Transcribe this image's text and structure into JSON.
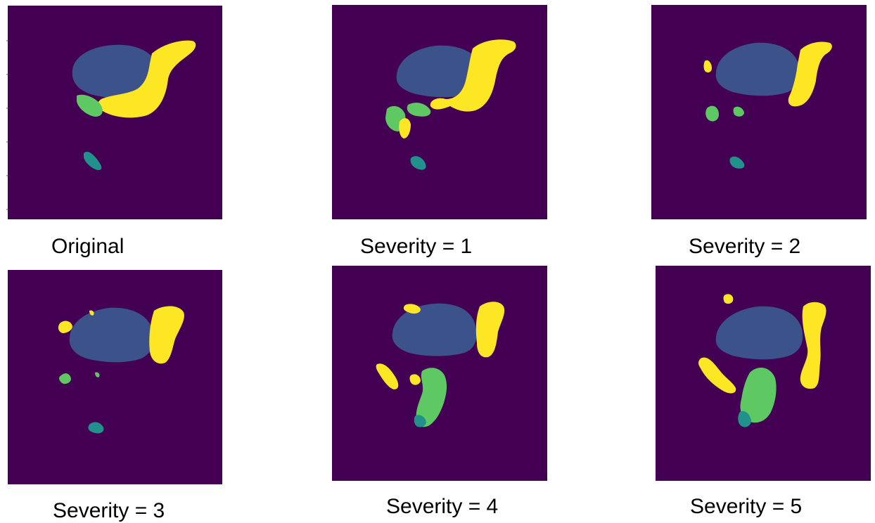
{
  "colors": {
    "background": "#440154",
    "blue_region": "#3b528b",
    "teal_region": "#21918c",
    "green_region": "#5ec962",
    "yellow_region": "#fde725"
  },
  "figure": {
    "panels": [
      {
        "caption": "Original"
      },
      {
        "caption": "Severity = 1"
      },
      {
        "caption": "Severity = 2"
      },
      {
        "caption": "Severity = 3"
      },
      {
        "caption": "Severity = 4"
      },
      {
        "caption": "Severity = 5"
      }
    ]
  }
}
